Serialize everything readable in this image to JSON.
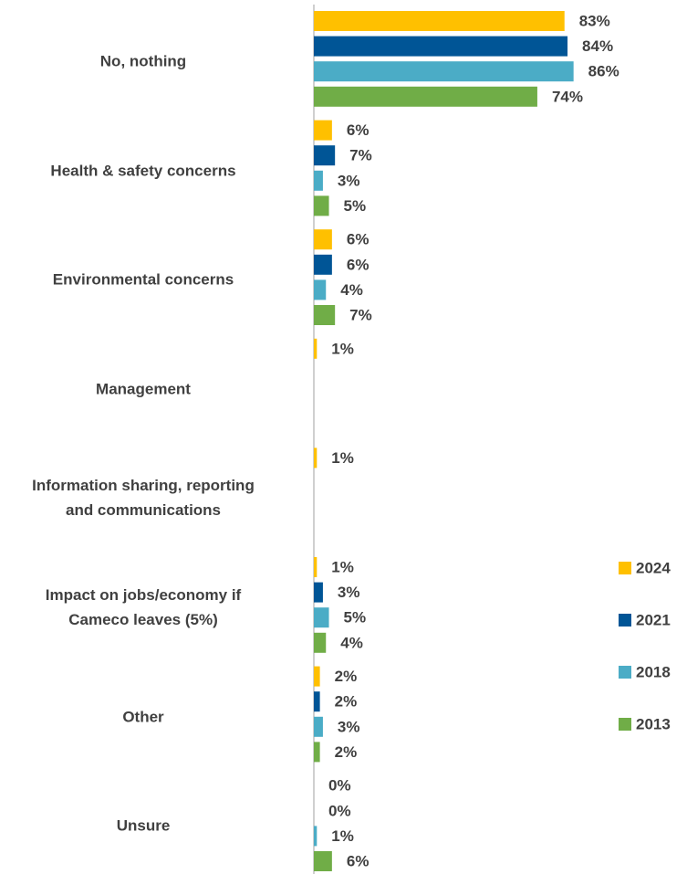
{
  "chart_data": {
    "type": "hbar",
    "categories": [
      "No, nothing",
      "Health & safety concerns",
      "Environmental concerns",
      "Management",
      "Information sharing, reporting\nand communications",
      "Impact on jobs/economy if\nCameco leaves (5%)",
      "Other",
      "Unsure"
    ],
    "series": [
      {
        "name": "2024",
        "color": "#FFC000",
        "values": [
          83,
          6,
          6,
          1,
          1,
          1,
          2,
          0
        ],
        "value_labels": [
          "83%",
          "6%",
          "6%",
          "1%",
          "1%",
          "1%",
          "2%",
          "0%"
        ]
      },
      {
        "name": "2021",
        "color": "#005596",
        "values": [
          84,
          7,
          6,
          null,
          null,
          3,
          2,
          0
        ],
        "value_labels": [
          "84%",
          "7%",
          "6%",
          null,
          null,
          "3%",
          "2%",
          "0%"
        ]
      },
      {
        "name": "2018",
        "color": "#4BACC6",
        "values": [
          86,
          3,
          4,
          null,
          null,
          5,
          3,
          1
        ],
        "value_labels": [
          "86%",
          "3%",
          "4%",
          null,
          null,
          "5%",
          "3%",
          "1%"
        ]
      },
      {
        "name": "2013",
        "color": "#70AD47",
        "values": [
          74,
          5,
          7,
          null,
          null,
          4,
          2,
          6
        ],
        "value_labels": [
          "74%",
          "5%",
          "7%",
          null,
          null,
          "4%",
          "2%",
          "6%"
        ]
      }
    ],
    "xlim": [
      0,
      100
    ],
    "legend": "right"
  }
}
